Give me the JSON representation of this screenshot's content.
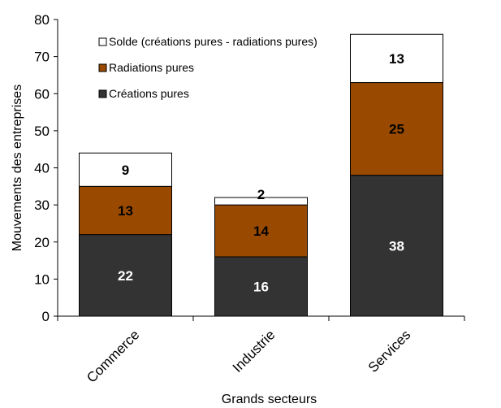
{
  "chart_data": {
    "type": "bar",
    "stacked": true,
    "categories": [
      "Commerce",
      "Industrie",
      "Services"
    ],
    "series": [
      {
        "name": "Créations pures",
        "values": [
          22,
          16,
          38
        ],
        "color": "#333333",
        "label_color": "#ffffff"
      },
      {
        "name": "Radiations pures",
        "values": [
          13,
          14,
          25
        ],
        "color": "#994a00",
        "label_color": "#000000"
      },
      {
        "name": "Solde (créations pures - radiations pures)",
        "values": [
          9,
          2,
          13
        ],
        "color": "#ffffff",
        "label_color": "#000000"
      }
    ],
    "xlabel": "Grands secteurs",
    "ylabel": "Mouvements des entreprises",
    "ylim": [
      0,
      80
    ],
    "yticks": [
      0,
      10,
      20,
      30,
      40,
      50,
      60,
      70,
      80
    ],
    "legend_position": "top-left",
    "legend_order": [
      2,
      1,
      0
    ],
    "grid": false
  }
}
